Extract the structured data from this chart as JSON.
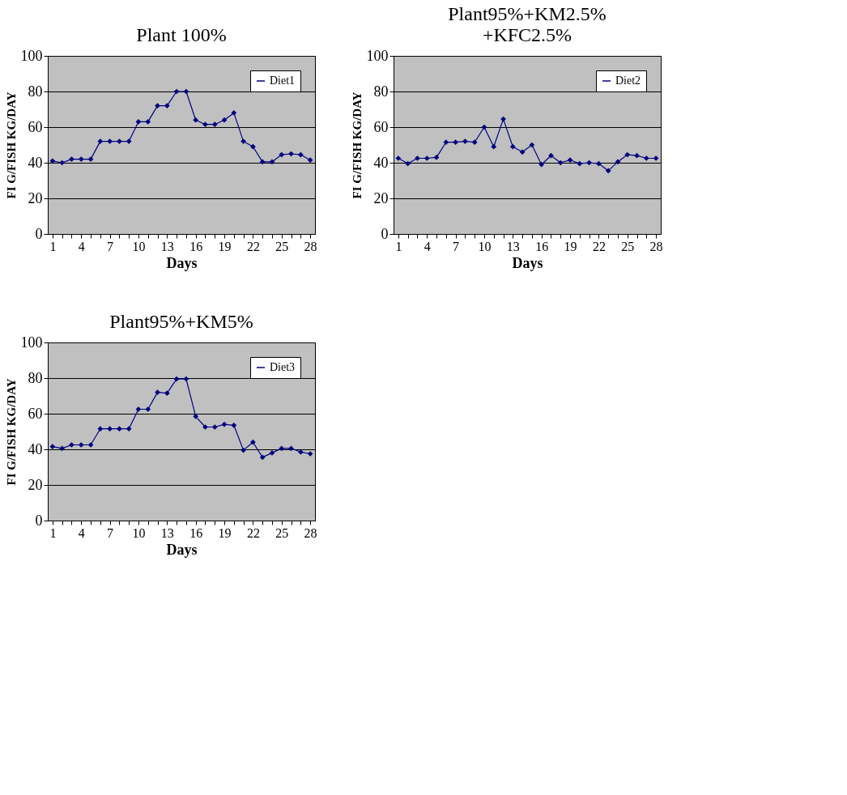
{
  "chart_data": [
    {
      "type": "line",
      "title": "Plant 100%",
      "xlabel": "Days",
      "ylabel": "FI G/FISH KG/DAY",
      "categories": [
        "1",
        null,
        null,
        "4",
        null,
        null,
        "7",
        null,
        null,
        "10",
        null,
        null,
        "13",
        null,
        null,
        "16",
        null,
        null,
        "19",
        null,
        null,
        "22",
        null,
        null,
        "25",
        null,
        null,
        "28"
      ],
      "ylim": [
        0,
        100
      ],
      "yticks": [
        0,
        20,
        40,
        60,
        80,
        100
      ],
      "grid": "y",
      "legend": "top right",
      "marker": "diamond",
      "line_style": "solid",
      "series": [
        {
          "name": "Diet1",
          "color": "#000080",
          "values": [
            41,
            40,
            42,
            42,
            42,
            52,
            52,
            52,
            52,
            63,
            63,
            72,
            72,
            80,
            80,
            64,
            61.5,
            61.5,
            64,
            68,
            52,
            49,
            40.5,
            40.5,
            44.5,
            45,
            44.5,
            41.5
          ]
        }
      ]
    },
    {
      "type": "line",
      "title": "Plant95%+KM2.5%\n+KFC2.5%",
      "xlabel": "Days",
      "ylabel": "FI G/FISH KG/DAY",
      "categories": [
        "1",
        null,
        null,
        "4",
        null,
        null,
        "7",
        null,
        null,
        "10",
        null,
        null,
        "13",
        null,
        null,
        "16",
        null,
        null,
        "19",
        null,
        null,
        "22",
        null,
        null,
        "25",
        null,
        null,
        "28"
      ],
      "ylim": [
        0,
        100
      ],
      "yticks": [
        0,
        20,
        40,
        60,
        80,
        100
      ],
      "grid": "y",
      "legend": "top right",
      "marker": "diamond",
      "line_style": "solid",
      "series": [
        {
          "name": "Diet2",
          "color": "#000080",
          "values": [
            42.5,
            39.5,
            42.5,
            42.5,
            43,
            51.5,
            51.5,
            52,
            51.5,
            60,
            49,
            64.5,
            49,
            46,
            50,
            39,
            44,
            40,
            41.5,
            39.5,
            40,
            39.5,
            35.5,
            40.5,
            44.5,
            44,
            42.5,
            42.5
          ]
        }
      ]
    },
    {
      "type": "line",
      "title": "Plant95%+KM5%",
      "xlabel": "Days",
      "ylabel": "FI G/FISH KG/DAY",
      "categories": [
        "1",
        null,
        null,
        "4",
        null,
        null,
        "7",
        null,
        null,
        "10",
        null,
        null,
        "13",
        null,
        null,
        "16",
        null,
        null,
        "19",
        null,
        null,
        "22",
        null,
        null,
        "25",
        null,
        null,
        "28"
      ],
      "ylim": [
        0,
        100
      ],
      "yticks": [
        0,
        20,
        40,
        60,
        80,
        100
      ],
      "grid": "y",
      "legend": "top right",
      "marker": "diamond",
      "line_style": "solid",
      "series": [
        {
          "name": "Diet3",
          "color": "#000080",
          "values": [
            41.5,
            40.5,
            42.5,
            42.5,
            42.5,
            51.5,
            51.5,
            51.5,
            51.5,
            62.5,
            62.5,
            72,
            71.5,
            79.5,
            79.5,
            58.5,
            52.5,
            52.5,
            54,
            53.5,
            39.5,
            44,
            35.5,
            38,
            40.5,
            40.5,
            38.5,
            37.5
          ]
        }
      ]
    }
  ]
}
